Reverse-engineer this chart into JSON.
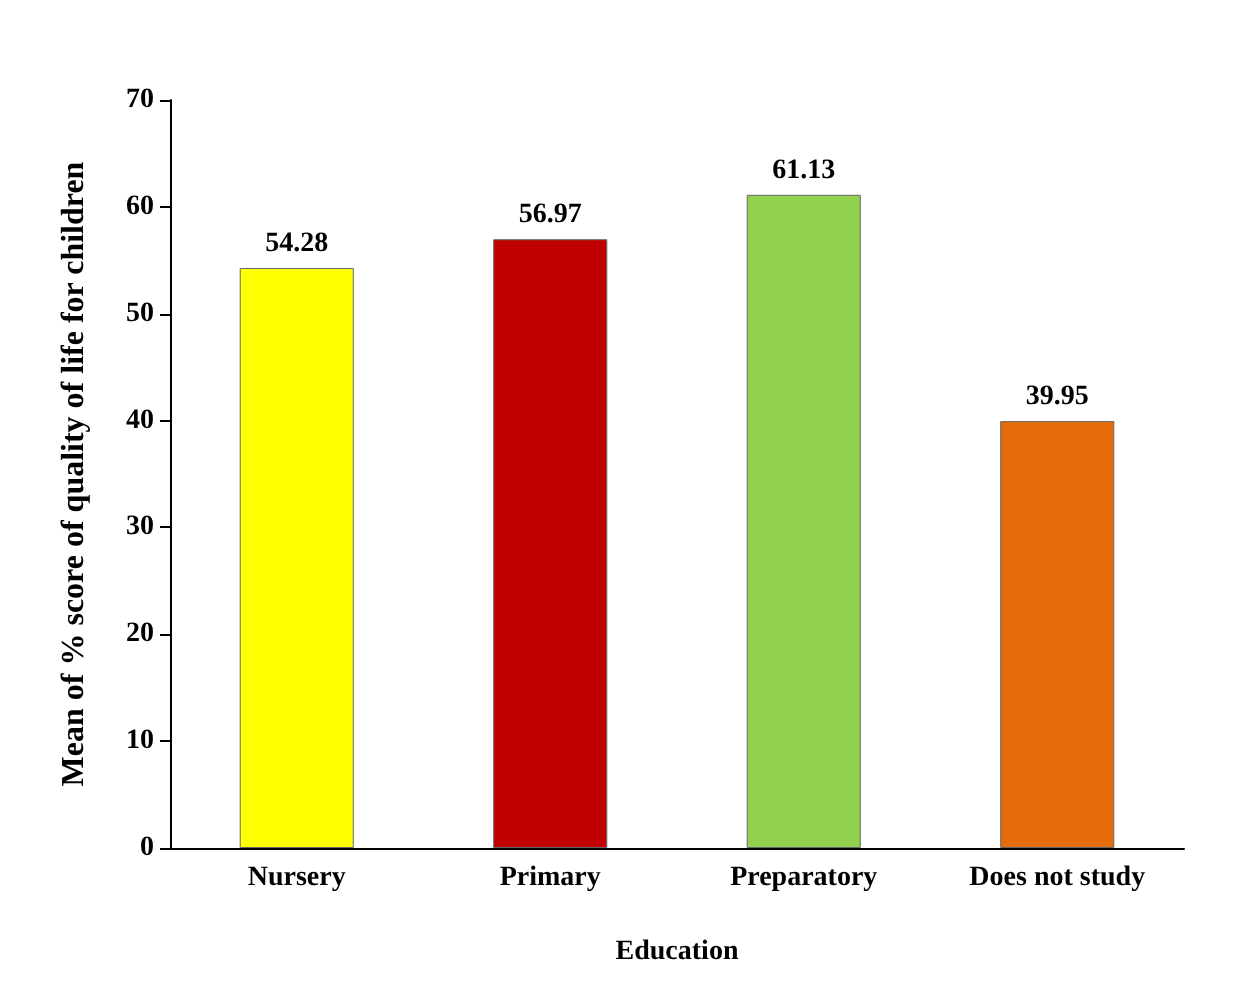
{
  "chart_data": {
    "type": "bar",
    "xlabel": "Education",
    "ylabel": "Mean of % score of quality of life for children",
    "categories": [
      "Nursery",
      "Primary",
      "Preparatory",
      "Does not study"
    ],
    "values": [
      54.28,
      56.97,
      61.13,
      39.95
    ],
    "colors": [
      "#ffff00",
      "#c00000",
      "#92d050",
      "#e46c0a"
    ],
    "ylim": [
      0,
      70
    ],
    "yticks": [
      0,
      10,
      20,
      30,
      40,
      50,
      60,
      70
    ],
    "grid": false,
    "data_labels": true
  }
}
